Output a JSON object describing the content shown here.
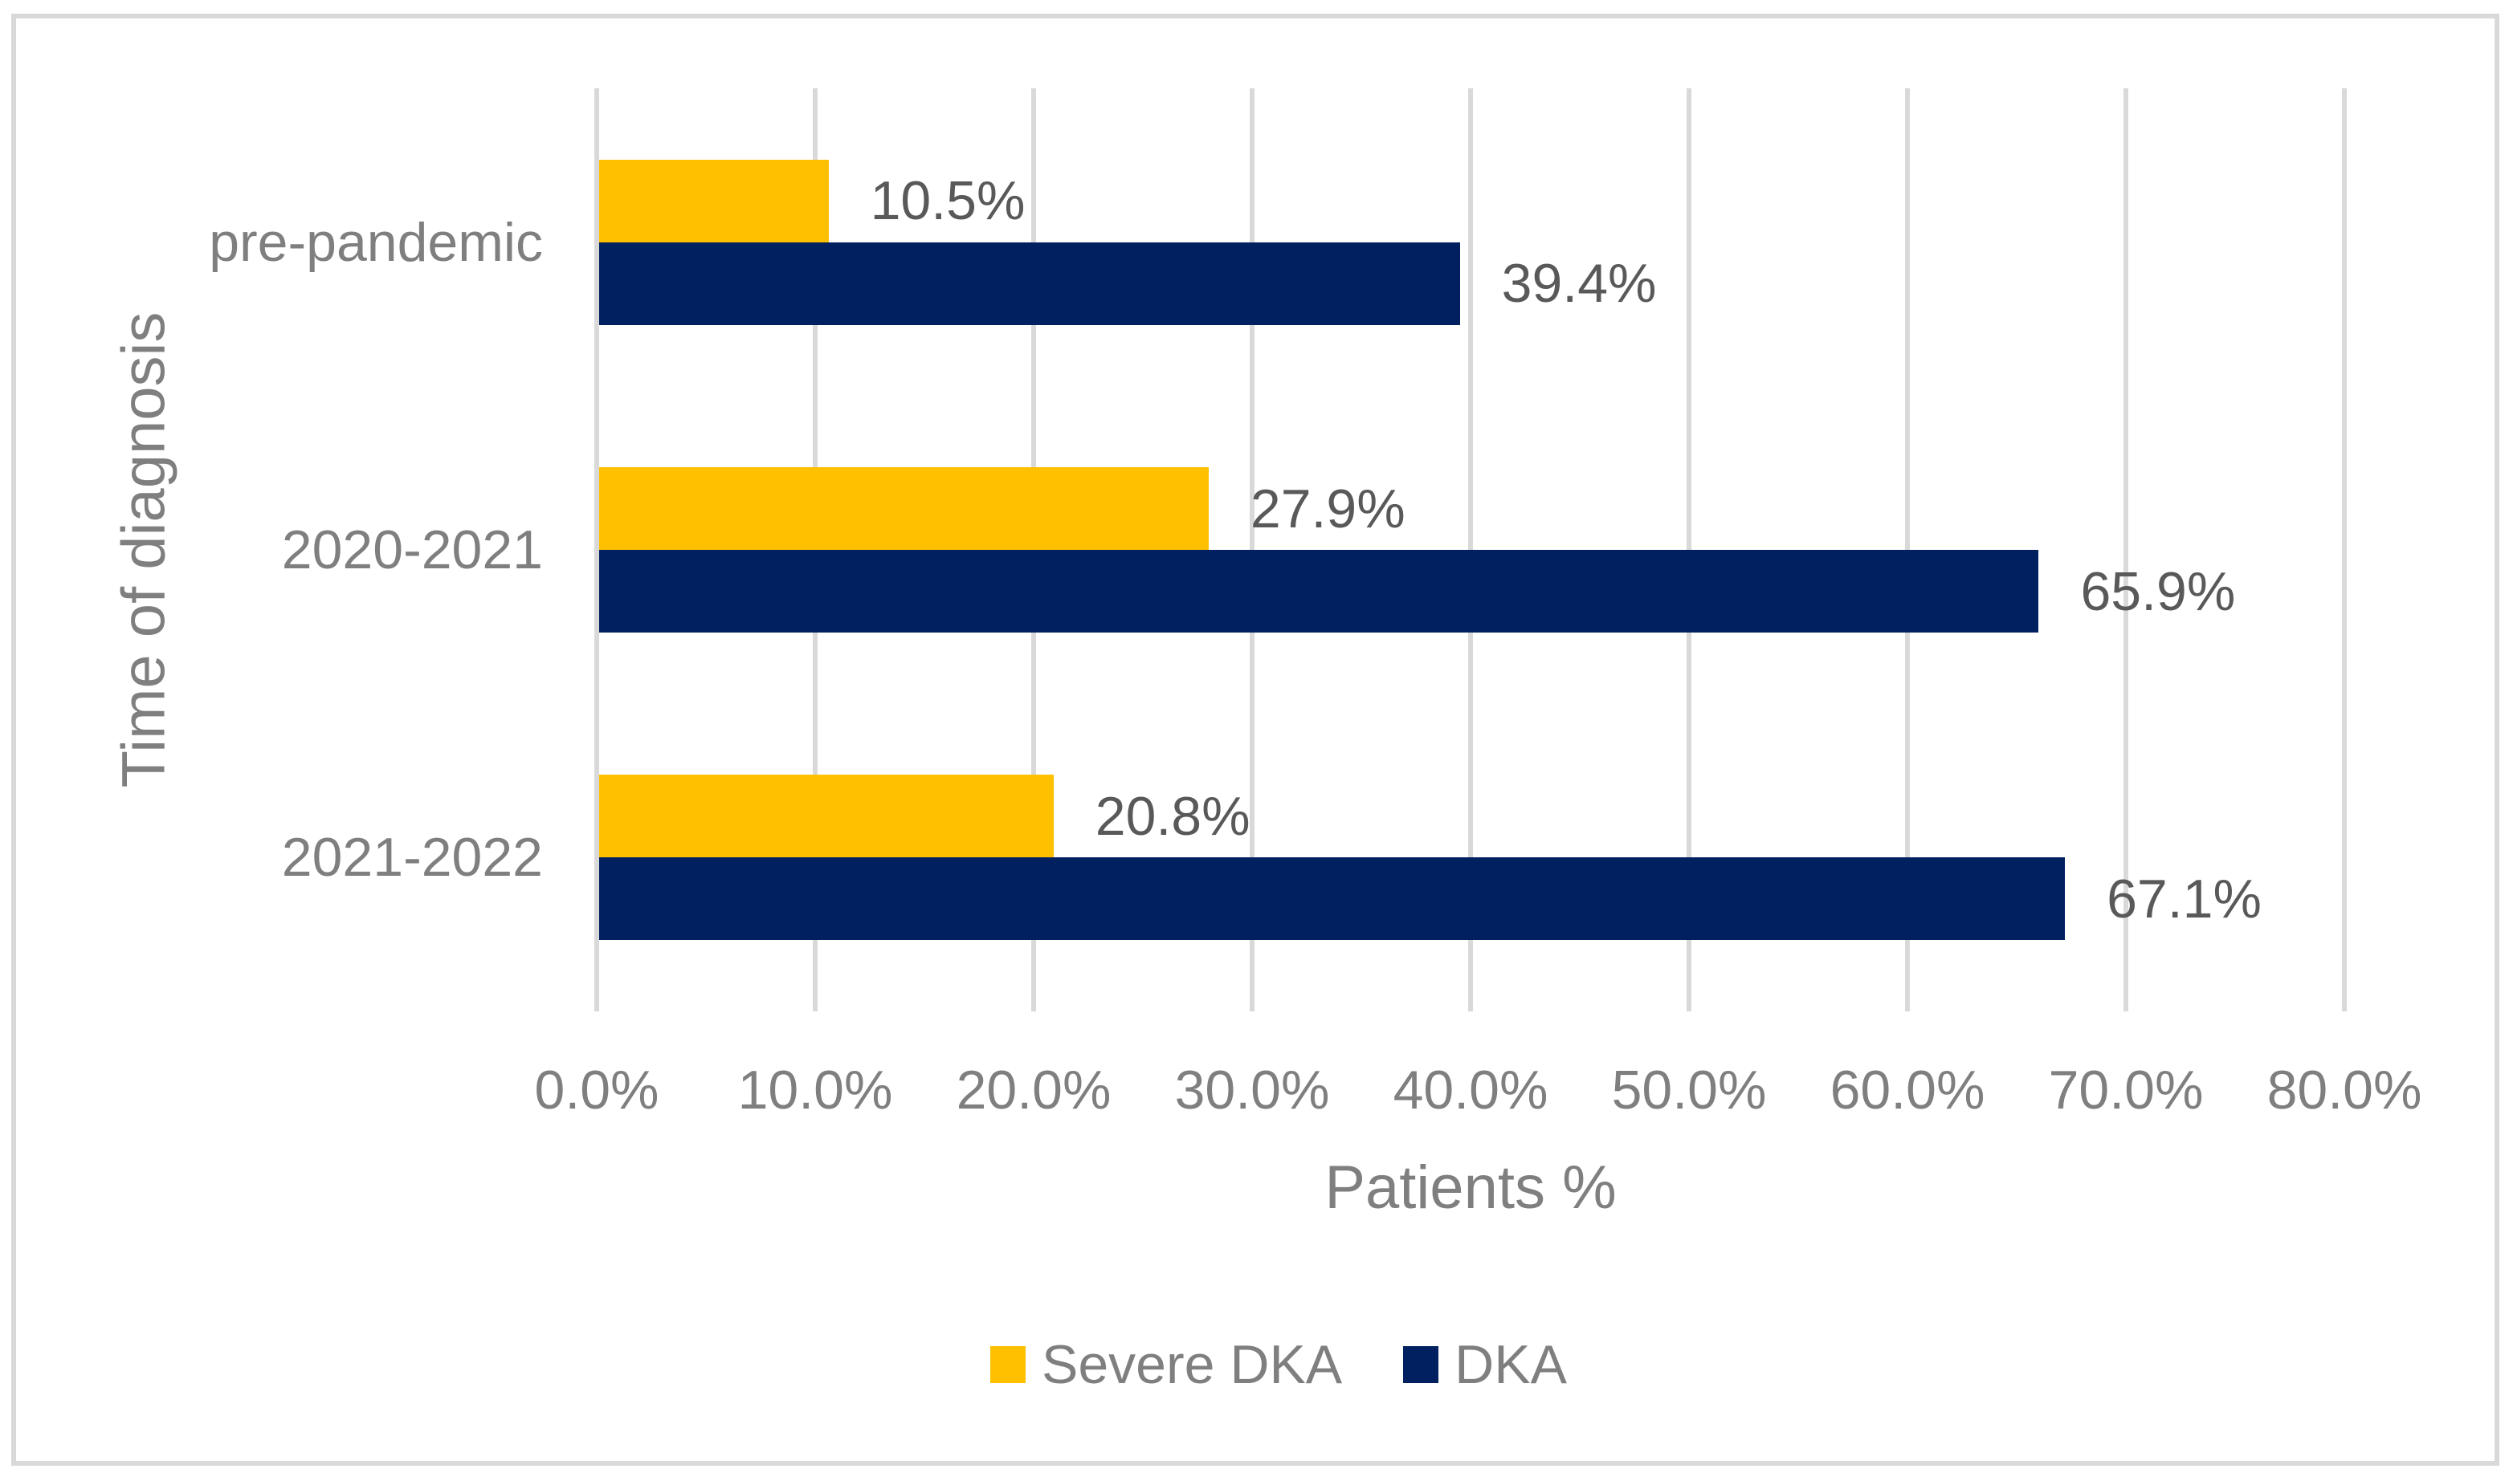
{
  "chart_data": {
    "type": "bar",
    "orientation": "horizontal",
    "title": "",
    "xlabel": "Patients %",
    "ylabel": "Time of diagnosis",
    "categories": [
      "pre-pandemic",
      "2020-2021",
      "2021-2022"
    ],
    "series": [
      {
        "name": "Severe DKA",
        "color": "#FFC000",
        "values": [
          10.5,
          27.9,
          20.8
        ],
        "labels": [
          "10.5%",
          "27.9%",
          "20.8%"
        ]
      },
      {
        "name": "DKA",
        "color": "#002060",
        "values": [
          39.4,
          65.9,
          67.1
        ],
        "labels": [
          "39.4%",
          "65.9%",
          "67.1%"
        ]
      }
    ],
    "xlim": [
      0,
      80
    ],
    "x_tick_labels": [
      "0.0%",
      "10.0%",
      "20.0%",
      "30.0%",
      "40.0%",
      "50.0%",
      "60.0%",
      "70.0%",
      "80.0%"
    ],
    "grid": "vertical-only",
    "legend_position": "bottom-center"
  },
  "colors": {
    "severe_dka": "#FFC000",
    "dka": "#002060",
    "gridline": "#D9D9D9",
    "axis_text": "#7F7F7F",
    "value_label_text": "#595959",
    "border": "#D9D9D9",
    "background": "#FFFFFF"
  },
  "legend": {
    "items": [
      {
        "label": "Severe DKA"
      },
      {
        "label": "DKA"
      }
    ]
  }
}
